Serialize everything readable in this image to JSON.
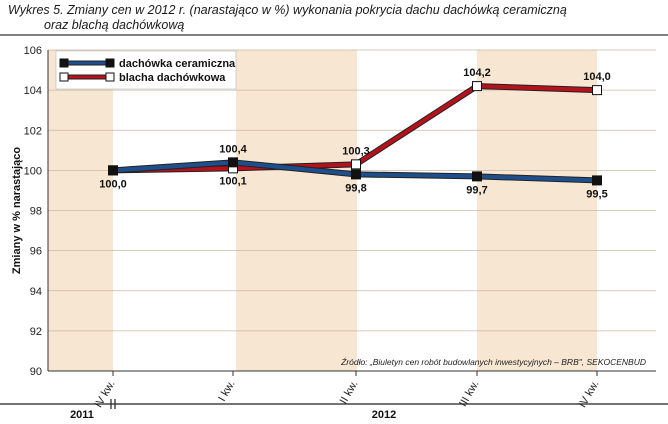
{
  "title_line1": "Wykres 5. Zmiany cen w 2012 r. (narastająco w %) wykonania pokrycia dachu dachówką ceramiczną",
  "title_line2": "oraz blachą dachówkową",
  "source": "Źródło: „Biuletyn cen robót budowlanych inwestycyjnych – BRB\", SEKOCENBUD",
  "years": [
    "2011",
    "2012"
  ],
  "colors": {
    "ceramic": "#1f4e8c",
    "metal": "#b5121b",
    "band": "#f7e6d2",
    "grid": "#c9b8a6"
  },
  "chart_data": {
    "type": "line",
    "categories": [
      "IV kw.",
      "I kw.",
      "II kw.",
      "III kw.",
      "IV kw."
    ],
    "ylabel": "Zmiany w % narastająco",
    "xlabel": "",
    "ylim": [
      90,
      106
    ],
    "yticks": [
      "90",
      "92",
      "94",
      "96",
      "98",
      "100",
      "102",
      "104",
      "106"
    ],
    "grid": true,
    "legend": "top-left",
    "series": [
      {
        "name": "dachówka ceramiczna",
        "values": [
          100.0,
          100.4,
          99.8,
          99.7,
          99.5
        ],
        "labels": [
          "100,0",
          "100,4",
          "99,8",
          "99,7",
          "99,5"
        ]
      },
      {
        "name": "blacha dachówkowa",
        "values": [
          100.0,
          100.1,
          100.3,
          104.2,
          104.0
        ],
        "labels": [
          "",
          "100,1",
          "100,3",
          "104,2",
          "104,0"
        ]
      }
    ]
  }
}
